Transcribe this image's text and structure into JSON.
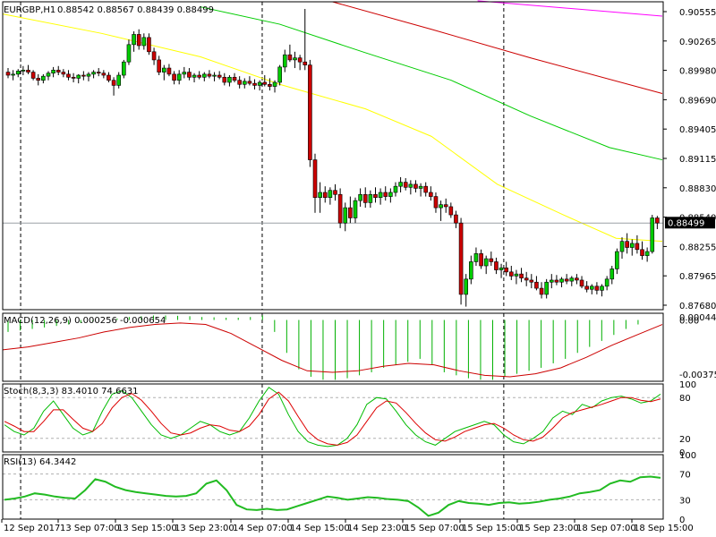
{
  "chart_data": {
    "type": "candlestick",
    "header": {
      "symbol": "EURGBP,H1",
      "open": "0.88542",
      "high": "0.88567",
      "low": "0.88439",
      "close": "0.88499"
    },
    "price_axis": {
      "ticks": [
        "0.90555",
        "0.90265",
        "0.89980",
        "0.89690",
        "0.89405",
        "0.89115",
        "0.88830",
        "0.88540",
        "0.88255",
        "0.87965",
        "0.87680"
      ],
      "current_label": "0.88499",
      "current_value": 0.88499,
      "ylim": [
        0.8765,
        0.9067
      ]
    },
    "time_axis": {
      "labels": [
        "12 Sep 2017",
        "13 Sep 07:00",
        "13 Sep 15:00",
        "13 Sep 23:00",
        "14 Sep 07:00",
        "14 Sep 15:00",
        "14 Sep 23:00",
        "15 Sep 07:00",
        "15 Sep 15:00",
        "15 Sep 23:00",
        "18 Sep 07:00",
        "18 Sep 15:00"
      ],
      "separators_after_bars": [
        2,
        50,
        98,
        146,
        194
      ]
    },
    "candles": [
      [
        0.8998,
        0.9002,
        0.8992,
        0.8995
      ],
      [
        0.8995,
        0.9,
        0.899,
        0.8996
      ],
      [
        0.8996,
        0.9001,
        0.8993,
        0.8999
      ],
      [
        0.8999,
        0.9004,
        0.8995,
        0.9
      ],
      [
        0.9,
        0.9005,
        0.8996,
        0.8998
      ],
      [
        0.8998,
        0.9,
        0.899,
        0.8992
      ],
      [
        0.8992,
        0.8996,
        0.8985,
        0.899
      ],
      [
        0.899,
        0.8996,
        0.8987,
        0.8994
      ],
      [
        0.8994,
        0.8999,
        0.899,
        0.8997
      ],
      [
        0.8997,
        0.9003,
        0.8993,
        0.9
      ],
      [
        0.9,
        0.9004,
        0.8995,
        0.8998
      ],
      [
        0.8998,
        0.9001,
        0.8993,
        0.8996
      ],
      [
        0.8996,
        0.9,
        0.899,
        0.8993
      ],
      [
        0.8993,
        0.8997,
        0.8988,
        0.8992
      ],
      [
        0.8992,
        0.8996,
        0.8987,
        0.8995
      ],
      [
        0.8995,
        0.8999,
        0.899,
        0.8994
      ],
      [
        0.8994,
        0.8998,
        0.8989,
        0.8996
      ],
      [
        0.8996,
        0.9,
        0.8992,
        0.8998
      ],
      [
        0.8998,
        0.9002,
        0.8994,
        0.8997
      ],
      [
        0.8997,
        0.9,
        0.8992,
        0.8995
      ],
      [
        0.8995,
        0.8998,
        0.8988,
        0.899
      ],
      [
        0.899,
        0.8993,
        0.8975,
        0.8985
      ],
      [
        0.8985,
        0.8998,
        0.8982,
        0.8995
      ],
      [
        0.8995,
        0.901,
        0.8992,
        0.9008
      ],
      [
        0.9008,
        0.903,
        0.9005,
        0.9025
      ],
      [
        0.9025,
        0.9038,
        0.9018,
        0.9035
      ],
      [
        0.9035,
        0.904,
        0.902,
        0.9024
      ],
      [
        0.9024,
        0.9036,
        0.902,
        0.9032
      ],
      [
        0.9032,
        0.9036,
        0.9015,
        0.9018
      ],
      [
        0.9018,
        0.9022,
        0.9005,
        0.901
      ],
      [
        0.901,
        0.9014,
        0.8995,
        0.8998
      ],
      [
        0.8998,
        0.9005,
        0.899,
        0.9002
      ],
      [
        0.9002,
        0.9006,
        0.8994,
        0.8996
      ],
      [
        0.8996,
        0.8999,
        0.8986,
        0.899
      ],
      [
        0.899,
        0.9,
        0.8986,
        0.8996
      ],
      [
        0.8996,
        0.9003,
        0.8992,
        0.8998
      ],
      [
        0.8998,
        0.9002,
        0.899,
        0.8993
      ],
      [
        0.8993,
        0.8997,
        0.8988,
        0.8995
      ],
      [
        0.8995,
        0.8999,
        0.8991,
        0.8993
      ],
      [
        0.8993,
        0.8998,
        0.8989,
        0.8996
      ],
      [
        0.8996,
        0.9,
        0.8992,
        0.8994
      ],
      [
        0.8994,
        0.8998,
        0.8989,
        0.8995
      ],
      [
        0.8995,
        0.8999,
        0.8991,
        0.8993
      ],
      [
        0.8993,
        0.8997,
        0.8985,
        0.8988
      ],
      [
        0.8988,
        0.8995,
        0.8984,
        0.8993
      ],
      [
        0.8993,
        0.8997,
        0.8988,
        0.899
      ],
      [
        0.899,
        0.8994,
        0.8982,
        0.8986
      ],
      [
        0.8986,
        0.8992,
        0.8982,
        0.8989
      ],
      [
        0.8989,
        0.8994,
        0.8985,
        0.8987
      ],
      [
        0.8987,
        0.8991,
        0.8981,
        0.8985
      ],
      [
        0.8985,
        0.899,
        0.898,
        0.8988
      ],
      [
        0.8988,
        0.8995,
        0.8984,
        0.8986
      ],
      [
        0.8986,
        0.8992,
        0.898,
        0.8984
      ],
      [
        0.8984,
        0.899,
        0.8978,
        0.8988
      ],
      [
        0.8988,
        0.9005,
        0.8985,
        0.9003
      ],
      [
        0.9003,
        0.902,
        0.8998,
        0.9015
      ],
      [
        0.9015,
        0.9025,
        0.9008,
        0.901
      ],
      [
        0.901,
        0.9018,
        0.9002,
        0.9012
      ],
      [
        0.9012,
        0.9015,
        0.9,
        0.9008
      ],
      [
        0.9008,
        0.906,
        0.9,
        0.9005
      ],
      [
        0.9005,
        0.901,
        0.8905,
        0.8912
      ],
      [
        0.8912,
        0.8918,
        0.886,
        0.8875
      ],
      [
        0.8875,
        0.889,
        0.886,
        0.888
      ],
      [
        0.888,
        0.8886,
        0.887,
        0.8875
      ],
      [
        0.8875,
        0.8885,
        0.8868,
        0.8882
      ],
      [
        0.8882,
        0.8888,
        0.8872,
        0.8878
      ],
      [
        0.8878,
        0.8884,
        0.8845,
        0.885
      ],
      [
        0.885,
        0.887,
        0.8842,
        0.8865
      ],
      [
        0.8865,
        0.8876,
        0.885,
        0.8855
      ],
      [
        0.8855,
        0.8875,
        0.885,
        0.8872
      ],
      [
        0.8872,
        0.8884,
        0.8866,
        0.8878
      ],
      [
        0.8878,
        0.8885,
        0.8865,
        0.887
      ],
      [
        0.887,
        0.8882,
        0.8865,
        0.8878
      ],
      [
        0.8878,
        0.8885,
        0.887,
        0.8875
      ],
      [
        0.8875,
        0.8884,
        0.8868,
        0.888
      ],
      [
        0.888,
        0.8886,
        0.8872,
        0.8876
      ],
      [
        0.8876,
        0.8884,
        0.887,
        0.888
      ],
      [
        0.888,
        0.889,
        0.8876,
        0.8886
      ],
      [
        0.8886,
        0.8895,
        0.888,
        0.889
      ],
      [
        0.889,
        0.8894,
        0.8882,
        0.8885
      ],
      [
        0.8885,
        0.8892,
        0.8878,
        0.8888
      ],
      [
        0.8888,
        0.8892,
        0.888,
        0.8884
      ],
      [
        0.8884,
        0.8889,
        0.8876,
        0.8886
      ],
      [
        0.8886,
        0.889,
        0.8876,
        0.888
      ],
      [
        0.888,
        0.8886,
        0.8872,
        0.8876
      ],
      [
        0.8876,
        0.888,
        0.886,
        0.8865
      ],
      [
        0.8865,
        0.8872,
        0.8852,
        0.8868
      ],
      [
        0.8868,
        0.8874,
        0.886,
        0.8866
      ],
      [
        0.8866,
        0.887,
        0.8855,
        0.8858
      ],
      [
        0.8858,
        0.8862,
        0.8845,
        0.885
      ],
      [
        0.885,
        0.8855,
        0.877,
        0.878
      ],
      [
        0.878,
        0.88,
        0.8768,
        0.8795
      ],
      [
        0.8795,
        0.8818,
        0.879,
        0.8812
      ],
      [
        0.8812,
        0.8826,
        0.8808,
        0.882
      ],
      [
        0.882,
        0.8824,
        0.8805,
        0.8808
      ],
      [
        0.8808,
        0.8818,
        0.88,
        0.8815
      ],
      [
        0.8815,
        0.8822,
        0.8808,
        0.8812
      ],
      [
        0.8812,
        0.8816,
        0.88,
        0.8804
      ],
      [
        0.8804,
        0.881,
        0.8796,
        0.8806
      ],
      [
        0.8806,
        0.8812,
        0.8798,
        0.8802
      ],
      [
        0.8802,
        0.8808,
        0.8794,
        0.8798
      ],
      [
        0.8798,
        0.8804,
        0.879,
        0.88
      ],
      [
        0.88,
        0.8806,
        0.8792,
        0.8796
      ],
      [
        0.8796,
        0.8802,
        0.8788,
        0.8794
      ],
      [
        0.8794,
        0.88,
        0.8786,
        0.8792
      ],
      [
        0.8792,
        0.8798,
        0.8784,
        0.8786
      ],
      [
        0.8786,
        0.8792,
        0.8776,
        0.878
      ],
      [
        0.878,
        0.8795,
        0.8776,
        0.8792
      ],
      [
        0.8792,
        0.88,
        0.8786,
        0.8794
      ],
      [
        0.8794,
        0.8799,
        0.8789,
        0.8792
      ],
      [
        0.8792,
        0.8797,
        0.8787,
        0.8795
      ],
      [
        0.8795,
        0.88,
        0.879,
        0.8793
      ],
      [
        0.8793,
        0.8798,
        0.8788,
        0.8796
      ],
      [
        0.8796,
        0.88,
        0.879,
        0.8794
      ],
      [
        0.8794,
        0.8798,
        0.8786,
        0.8788
      ],
      [
        0.8788,
        0.8793,
        0.8782,
        0.8785
      ],
      [
        0.8785,
        0.879,
        0.878,
        0.8788
      ],
      [
        0.8788,
        0.8792,
        0.878,
        0.8784
      ],
      [
        0.8784,
        0.879,
        0.8778,
        0.8788
      ],
      [
        0.8788,
        0.8798,
        0.8784,
        0.8795
      ],
      [
        0.8795,
        0.8808,
        0.879,
        0.8805
      ],
      [
        0.8805,
        0.8825,
        0.88,
        0.8822
      ],
      [
        0.8822,
        0.8836,
        0.8815,
        0.8832
      ],
      [
        0.8832,
        0.884,
        0.882,
        0.8826
      ],
      [
        0.8826,
        0.8834,
        0.8818,
        0.883
      ],
      [
        0.883,
        0.8838,
        0.882,
        0.8824
      ],
      [
        0.8824,
        0.8832,
        0.8814,
        0.8818
      ],
      [
        0.8818,
        0.8826,
        0.8812,
        0.8822
      ],
      [
        0.8822,
        0.8858,
        0.882,
        0.8855
      ],
      [
        0.8855,
        0.8857,
        0.8844,
        0.885
      ]
    ],
    "moving_averages": [
      {
        "color": "#ff00ff",
        "points": [
          [
            0.72,
            0.9068
          ],
          [
            1.0,
            0.9053
          ]
        ]
      },
      {
        "color": "#cc0000",
        "points": [
          [
            0.5,
            0.9067
          ],
          [
            0.65,
            0.904
          ],
          [
            0.8,
            0.9012
          ],
          [
            1.0,
            0.8977
          ]
        ]
      },
      {
        "color": "#00cc00",
        "points": [
          [
            0.3,
            0.9062
          ],
          [
            0.42,
            0.9045
          ],
          [
            0.55,
            0.9017
          ],
          [
            0.68,
            0.899
          ],
          [
            0.8,
            0.8955
          ],
          [
            0.92,
            0.8924
          ],
          [
            1.0,
            0.8912
          ]
        ]
      },
      {
        "color": "#ffff00",
        "points": [
          [
            0.0,
            0.9055
          ],
          [
            0.15,
            0.9036
          ],
          [
            0.3,
            0.9013
          ],
          [
            0.42,
            0.8986
          ],
          [
            0.55,
            0.8962
          ],
          [
            0.65,
            0.8935
          ],
          [
            0.75,
            0.8888
          ],
          [
            0.85,
            0.8858
          ],
          [
            0.93,
            0.8835
          ],
          [
            1.0,
            0.8832
          ]
        ]
      }
    ],
    "macd": {
      "title": "MACD(12,26,9) 0.000256 -0.000654",
      "ticks": [
        "0.000447",
        "0.00",
        "-0.003757"
      ],
      "ylim": [
        -0.0041,
        0.00045
      ],
      "histogram": [
        -0.0008,
        -0.0007,
        -0.0006,
        -0.0005,
        -0.0004,
        -0.0003,
        -0.0002,
        -0.0001,
        0.0,
        0.0001,
        0.0002,
        0.00025,
        0.0003,
        0.0003,
        0.00028,
        0.00025,
        0.0002,
        0.00018,
        0.00015,
        0.00015,
        0.0002,
        0.0003,
        -0.0008,
        -0.0022,
        -0.0033,
        -0.0038,
        -0.004,
        -0.004,
        -0.0039,
        -0.0037,
        -0.0035,
        -0.0032,
        -0.003,
        -0.0028,
        -0.0026,
        -0.003,
        -0.0035,
        -0.0037,
        -0.0039,
        -0.004,
        -0.004,
        -0.0038,
        -0.0036,
        -0.0034,
        -0.0032,
        -0.0029,
        -0.0026,
        -0.0022,
        -0.0018,
        -0.0014,
        -0.001,
        -0.0006,
        -0.0003,
        0.0
      ],
      "signal": [
        -0.002,
        -0.0018,
        -0.0015,
        -0.0012,
        -0.0008,
        -0.0005,
        -0.0003,
        -0.0002,
        -0.0003,
        -0.0009,
        -0.0018,
        -0.0027,
        -0.0034,
        -0.0035,
        -0.0034,
        -0.0031,
        -0.0029,
        -0.003,
        -0.0034,
        -0.0037,
        -0.0038,
        -0.0036,
        -0.0032,
        -0.0025,
        -0.0017,
        -0.001,
        -0.0003
      ]
    },
    "stochastic": {
      "title": "Stoch(8,3,3) 83.4010 74.6631",
      "ticks": [
        "100",
        "80",
        "20",
        "0"
      ],
      "ylim": [
        0,
        100
      ],
      "levels": [
        80,
        20
      ],
      "main": [
        40,
        30,
        25,
        35,
        60,
        75,
        55,
        35,
        25,
        30,
        60,
        85,
        90,
        80,
        60,
        40,
        25,
        20,
        25,
        35,
        45,
        40,
        30,
        25,
        30,
        50,
        75,
        95,
        85,
        55,
        30,
        15,
        10,
        8,
        10,
        20,
        40,
        70,
        80,
        78,
        60,
        40,
        25,
        15,
        10,
        20,
        30,
        35,
        40,
        45,
        40,
        25,
        15,
        12,
        20,
        30,
        50,
        60,
        55,
        70,
        65,
        75,
        80,
        82,
        78,
        72,
        75,
        85
      ],
      "signal": [
        45,
        38,
        30,
        30,
        45,
        62,
        62,
        48,
        35,
        30,
        42,
        65,
        80,
        86,
        76,
        60,
        42,
        28,
        25,
        28,
        35,
        40,
        38,
        32,
        30,
        38,
        55,
        78,
        88,
        75,
        52,
        30,
        18,
        12,
        10,
        14,
        25,
        45,
        65,
        75,
        72,
        58,
        42,
        28,
        18,
        16,
        22,
        30,
        35,
        40,
        42,
        35,
        25,
        18,
        16,
        22,
        35,
        50,
        58,
        62,
        66,
        70,
        75,
        80,
        80,
        76,
        74,
        78
      ]
    },
    "rsi": {
      "title": "RSI(13) 64.3442",
      "ticks": [
        "100",
        "70",
        "30",
        "0"
      ],
      "ylim": [
        0,
        100
      ],
      "levels": [
        70,
        30
      ],
      "values": [
        30,
        32,
        35,
        40,
        38,
        35,
        33,
        32,
        45,
        62,
        58,
        50,
        45,
        42,
        40,
        38,
        36,
        35,
        36,
        40,
        55,
        60,
        45,
        22,
        15,
        14,
        16,
        14,
        15,
        20,
        25,
        30,
        35,
        33,
        30,
        32,
        34,
        33,
        31,
        30,
        28,
        18,
        5,
        10,
        22,
        28,
        25,
        24,
        22,
        25,
        26,
        24,
        25,
        27,
        30,
        32,
        35,
        40,
        42,
        45,
        55,
        60,
        58,
        65,
        66,
        64
      ]
    },
    "indicator_separators_after_bars": [
      2,
      50,
      98,
      146,
      194
    ]
  }
}
